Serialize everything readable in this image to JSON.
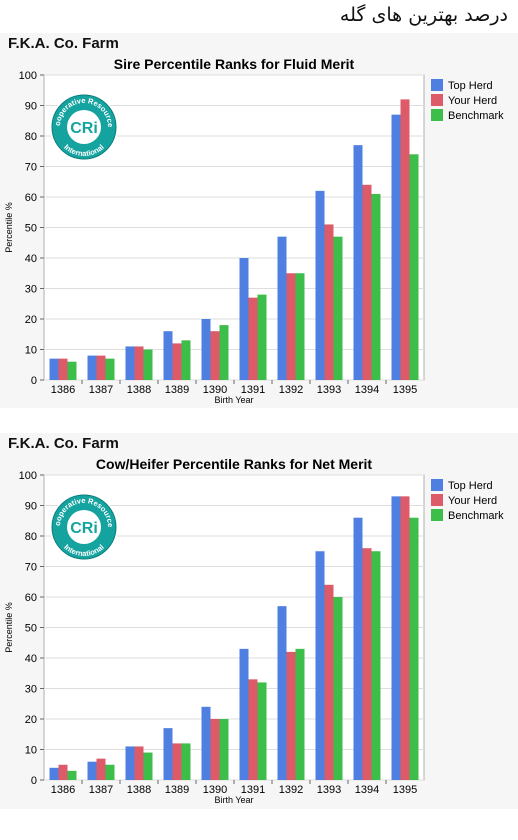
{
  "header": {
    "title": "درصد بهترین های گله"
  },
  "logo": {
    "top_text": "Cooperative Resources",
    "center_text": "CRi",
    "bottom_text": "International"
  },
  "colors": {
    "series": [
      "#4f7fe0",
      "#dd5a68",
      "#3dbd4a"
    ]
  },
  "chart_data": [
    {
      "type": "bar",
      "farm": "F.K.A. Co. Farm",
      "title": "Sire Percentile Ranks for Fluid Merit",
      "xlabel": "Birth Year",
      "ylabel": "Percentile %",
      "ylim": [
        0,
        100
      ],
      "yticks": [
        0,
        10,
        20,
        30,
        40,
        50,
        60,
        70,
        80,
        90,
        100
      ],
      "grid": true,
      "legend": "top-right",
      "categories": [
        "1386",
        "1387",
        "1388",
        "1389",
        "1390",
        "1391",
        "1392",
        "1393",
        "1394",
        "1395"
      ],
      "series": [
        {
          "name": "Top Herd",
          "values": [
            7,
            8,
            11,
            16,
            20,
            40,
            47,
            62,
            77,
            87
          ]
        },
        {
          "name": "Your Herd",
          "values": [
            7,
            8,
            11,
            12,
            16,
            27,
            35,
            51,
            64,
            92
          ]
        },
        {
          "name": "Benchmark",
          "values": [
            6,
            7,
            10,
            13,
            18,
            28,
            35,
            47,
            61,
            74
          ]
        }
      ]
    },
    {
      "type": "bar",
      "farm": "F.K.A. Co. Farm",
      "title": "Cow/Heifer Percentile Ranks for Net Merit",
      "xlabel": "Birth Year",
      "ylabel": "Percentile %",
      "ylim": [
        0,
        100
      ],
      "yticks": [
        0,
        10,
        20,
        30,
        40,
        50,
        60,
        70,
        80,
        90,
        100
      ],
      "grid": true,
      "legend": "top-right",
      "categories": [
        "1386",
        "1387",
        "1388",
        "1389",
        "1390",
        "1391",
        "1392",
        "1393",
        "1394",
        "1395"
      ],
      "series": [
        {
          "name": "Top Herd",
          "values": [
            4,
            6,
            11,
            17,
            24,
            43,
            57,
            75,
            86,
            93
          ]
        },
        {
          "name": "Your Herd",
          "values": [
            5,
            7,
            11,
            12,
            20,
            33,
            42,
            64,
            76,
            93
          ]
        },
        {
          "name": "Benchmark",
          "values": [
            3,
            5,
            9,
            12,
            20,
            32,
            43,
            60,
            75,
            86
          ]
        }
      ]
    }
  ]
}
